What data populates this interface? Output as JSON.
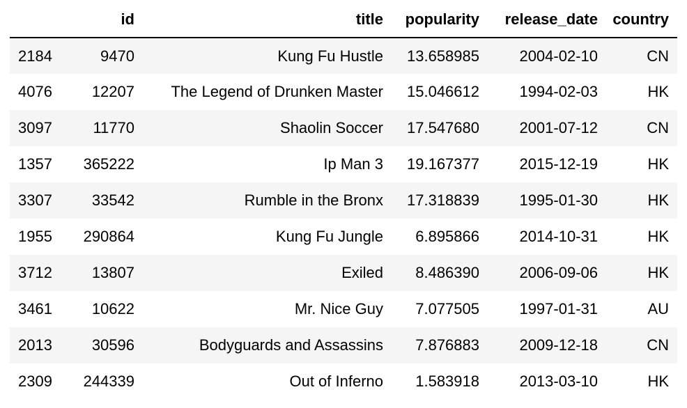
{
  "table": {
    "columns": [
      "",
      "id",
      "title",
      "popularity",
      "release_date",
      "country"
    ],
    "rows": [
      {
        "index": "2184",
        "id": "9470",
        "title": "Kung Fu Hustle",
        "popularity": "13.658985",
        "release_date": "2004-02-10",
        "country": "CN"
      },
      {
        "index": "4076",
        "id": "12207",
        "title": "The Legend of Drunken Master",
        "popularity": "15.046612",
        "release_date": "1994-02-03",
        "country": "HK"
      },
      {
        "index": "3097",
        "id": "11770",
        "title": "Shaolin Soccer",
        "popularity": "17.547680",
        "release_date": "2001-07-12",
        "country": "CN"
      },
      {
        "index": "1357",
        "id": "365222",
        "title": "Ip Man 3",
        "popularity": "19.167377",
        "release_date": "2015-12-19",
        "country": "HK"
      },
      {
        "index": "3307",
        "id": "33542",
        "title": "Rumble in the Bronx",
        "popularity": "17.318839",
        "release_date": "1995-01-30",
        "country": "HK"
      },
      {
        "index": "1955",
        "id": "290864",
        "title": "Kung Fu Jungle",
        "popularity": "6.895866",
        "release_date": "2014-10-31",
        "country": "HK"
      },
      {
        "index": "3712",
        "id": "13807",
        "title": "Exiled",
        "popularity": "8.486390",
        "release_date": "2006-09-06",
        "country": "HK"
      },
      {
        "index": "3461",
        "id": "10622",
        "title": "Mr. Nice Guy",
        "popularity": "7.077505",
        "release_date": "1997-01-31",
        "country": "AU"
      },
      {
        "index": "2013",
        "id": "30596",
        "title": "Bodyguards and Assassins",
        "popularity": "7.876883",
        "release_date": "2009-12-18",
        "country": "CN"
      },
      {
        "index": "2309",
        "id": "244339",
        "title": "Out of Inferno",
        "popularity": "1.583918",
        "release_date": "2013-03-10",
        "country": "HK"
      }
    ]
  }
}
